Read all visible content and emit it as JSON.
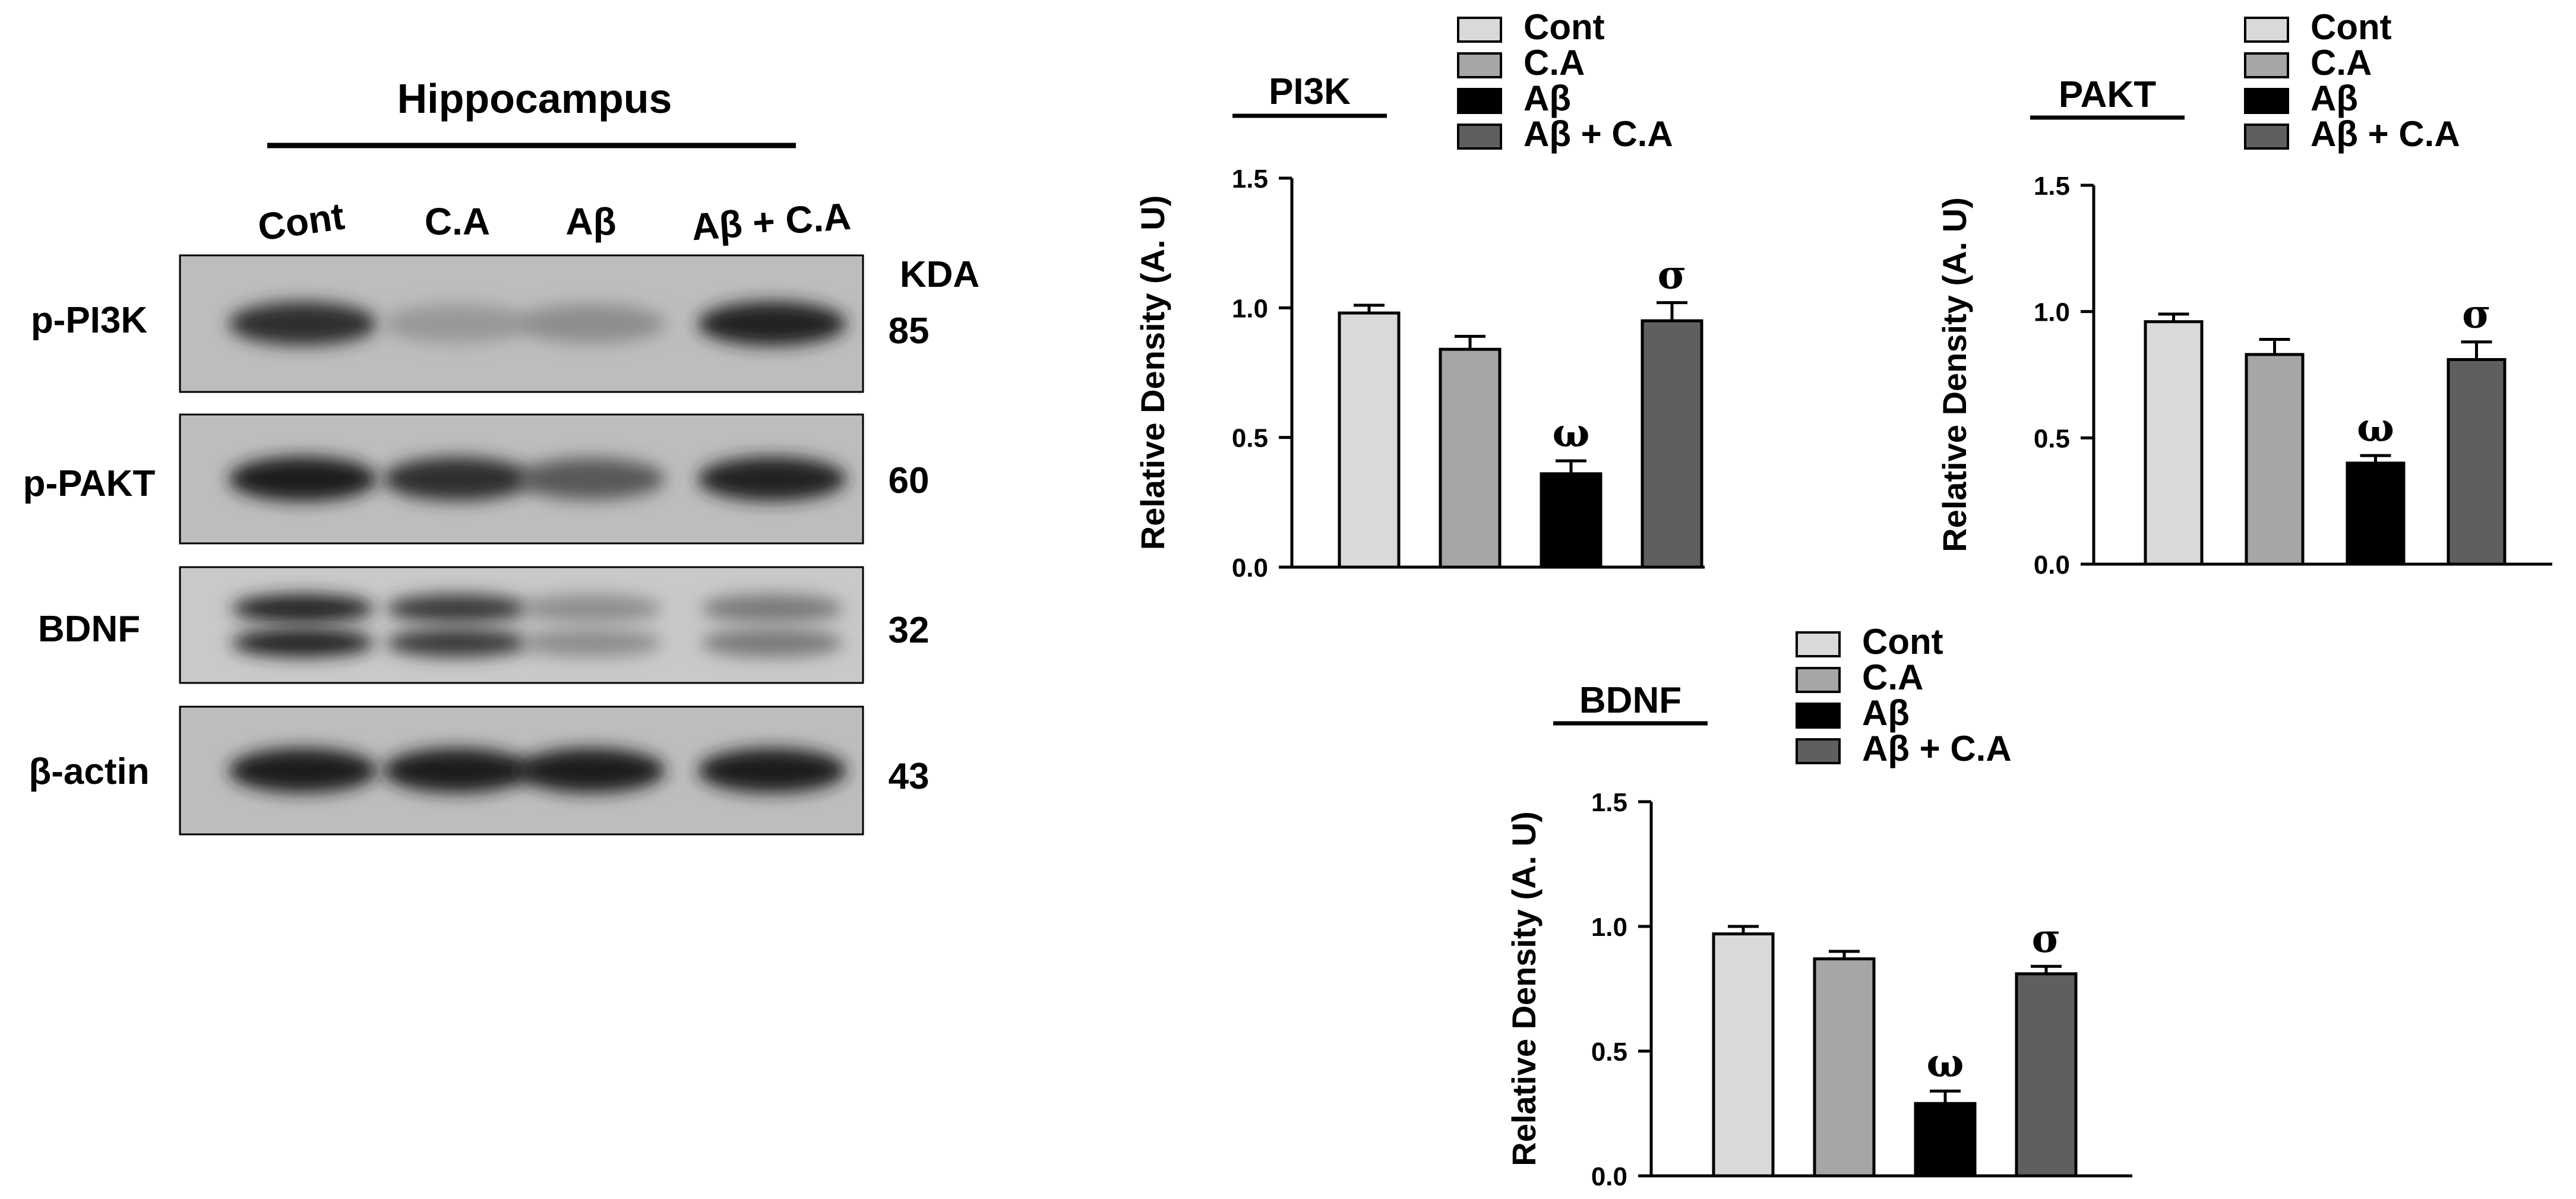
{
  "blot": {
    "region_title": "Hippocampus",
    "kda_label": "KDA",
    "lanes": [
      "Cont",
      "C.A",
      "Aβ",
      "Aβ + C.A"
    ],
    "rows": [
      {
        "protein": "p-PI3K",
        "kda": "85",
        "intensity": [
          0.85,
          0.35,
          0.4,
          0.9
        ],
        "double_band": false
      },
      {
        "protein": "p-PAKT",
        "kda": "60",
        "intensity": [
          0.95,
          0.85,
          0.65,
          0.92
        ],
        "double_band": false
      },
      {
        "protein": "BDNF",
        "kda": "32",
        "intensity": [
          0.9,
          0.8,
          0.4,
          0.5
        ],
        "double_band": true
      },
      {
        "protein": "β-actin",
        "kda": "43",
        "intensity": [
          0.95,
          0.95,
          0.95,
          0.95
        ],
        "double_band": false
      }
    ]
  },
  "legend_labels": [
    "Cont",
    "C.A",
    "Aβ",
    "Aβ + C.A"
  ],
  "colors": {
    "Cont": "#d9d9d9",
    "C.A": "#a6a6a6",
    "Aβ": "#000000",
    "Aβ + C.A": "#5f5f5f"
  },
  "chart_data": [
    {
      "type": "bar",
      "title": "PI3K",
      "ylabel": "Relative Density (A. U)",
      "categories": [
        "Cont",
        "C.A",
        "Aβ",
        "Aβ + C.A"
      ],
      "values": [
        0.98,
        0.84,
        0.36,
        0.95
      ],
      "errors": [
        0.03,
        0.05,
        0.05,
        0.07
      ],
      "annotations": [
        "",
        "",
        "ω",
        "σ"
      ],
      "ylim": [
        0,
        1.5
      ],
      "yticks": [
        "0.0",
        "0.5",
        "1.0",
        "1.5"
      ],
      "legend": "top-right"
    },
    {
      "type": "bar",
      "title": "PAKT",
      "ylabel": "Relative Density (A. U)",
      "categories": [
        "Cont",
        "C.A",
        "Aβ",
        "Aβ + C.A"
      ],
      "values": [
        0.96,
        0.83,
        0.4,
        0.81
      ],
      "errors": [
        0.03,
        0.06,
        0.03,
        0.07
      ],
      "annotations": [
        "",
        "",
        "ω",
        "σ"
      ],
      "ylim": [
        0,
        1.5
      ],
      "yticks": [
        "0.0",
        "0.5",
        "1.0",
        "1.5"
      ],
      "legend": "top-right"
    },
    {
      "type": "bar",
      "title": "BDNF",
      "ylabel": "Relative Density (A. U)",
      "categories": [
        "Cont",
        "C.A",
        "Aβ",
        "Aβ + C.A"
      ],
      "values": [
        0.97,
        0.87,
        0.29,
        0.81
      ],
      "errors": [
        0.03,
        0.03,
        0.05,
        0.03
      ],
      "annotations": [
        "",
        "",
        "ω",
        "σ"
      ],
      "ylim": [
        0,
        1.5
      ],
      "yticks": [
        "0.0",
        "0.5",
        "1.0",
        "1.5"
      ],
      "legend": "top-right"
    }
  ]
}
